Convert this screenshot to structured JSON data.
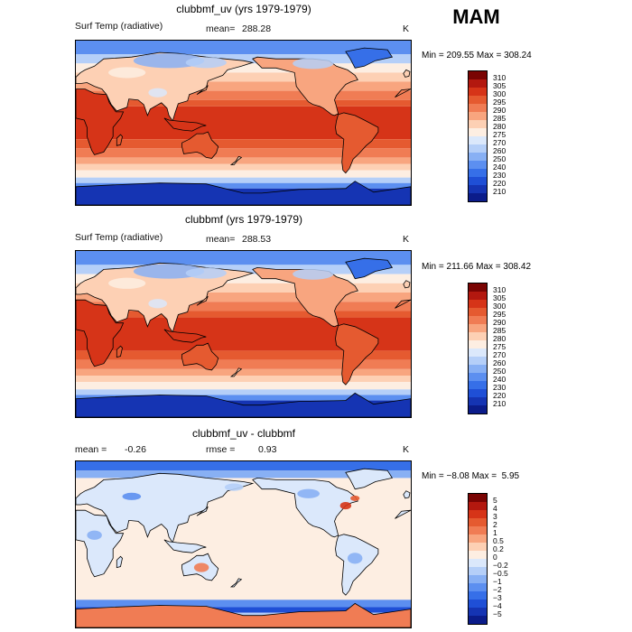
{
  "season": "MAM",
  "panels": [
    {
      "title": "clubbmf_uv (yrs 1979-1979)",
      "variable": "Surf Temp (radiative)",
      "stat_label": "mean=",
      "stat_value": "288.28",
      "units": "K",
      "minmax": "Min = 209.55 Max = 308.24",
      "colorbar": {
        "labels": [
          "310",
          "305",
          "300",
          "295",
          "290",
          "285",
          "280",
          "275",
          "270",
          "260",
          "250",
          "240",
          "230",
          "220",
          "210"
        ],
        "colors": [
          "#7a0403",
          "#b3180f",
          "#d63418",
          "#e55a30",
          "#f07c54",
          "#f8a57f",
          "#fdd0b4",
          "#fdeee2",
          "#dbe8fb",
          "#b5cff8",
          "#88b0f4",
          "#5c8ff0",
          "#366fe8",
          "#1f4fd6",
          "#1534b3",
          "#0b1c8a"
        ]
      },
      "colors": {
        "ocean_warm": "#d43b1d",
        "ocean_mid": "#ec7a50",
        "ocean_cool": "#f9c5a3",
        "polar": "#fdeee2",
        "cold": "#5c8ff0",
        "frozen": "#1f4fd6"
      }
    },
    {
      "title": "clubbmf (yrs 1979-1979)",
      "variable": "Surf Temp (radiative)",
      "stat_label": "mean=",
      "stat_value": "288.53",
      "units": "K",
      "minmax": "Min = 211.66 Max = 308.42",
      "colorbar": {
        "labels": [
          "310",
          "305",
          "300",
          "295",
          "290",
          "285",
          "280",
          "275",
          "270",
          "260",
          "250",
          "240",
          "230",
          "220",
          "210"
        ],
        "colors": [
          "#7a0403",
          "#b3180f",
          "#d63418",
          "#e55a30",
          "#f07c54",
          "#f8a57f",
          "#fdd0b4",
          "#fdeee2",
          "#dbe8fb",
          "#b5cff8",
          "#88b0f4",
          "#5c8ff0",
          "#366fe8",
          "#1f4fd6",
          "#1534b3",
          "#0b1c8a"
        ]
      }
    },
    {
      "title": "clubbmf_uv - clubbmf",
      "variable": "mean =",
      "stat_label": "",
      "stat_value": "-0.26",
      "rmse_label": "rmse =",
      "rmse_value": "0.93",
      "units": "K",
      "minmax": "Min = −8.08 Max =  5.95",
      "colorbar": {
        "labels": [
          "5",
          "4",
          "3",
          "2",
          "1",
          "0.5",
          "0.2",
          "0",
          "−0.2",
          "−0.5",
          "−1",
          "−2",
          "−3",
          "−4",
          "−5"
        ],
        "colors": [
          "#7a0403",
          "#b3180f",
          "#d63418",
          "#e55a30",
          "#f07c54",
          "#f8a57f",
          "#fdd0b4",
          "#fdeee2",
          "#dbe8fb",
          "#b5cff8",
          "#88b0f4",
          "#5c8ff0",
          "#366fe8",
          "#1f4fd6",
          "#1534b3",
          "#0b1c8a"
        ]
      }
    }
  ],
  "chart_data": [
    {
      "type": "heatmap",
      "title": "clubbmf_uv (yrs 1979-1979)",
      "field": "Surf Temp (radiative)",
      "units": "K",
      "mean": 288.28,
      "min": 209.55,
      "max": 308.24,
      "colorbar_levels": [
        210,
        220,
        230,
        240,
        250,
        260,
        270,
        275,
        280,
        285,
        290,
        295,
        300,
        305,
        310
      ]
    },
    {
      "type": "heatmap",
      "title": "clubbmf (yrs 1979-1979)",
      "field": "Surf Temp (radiative)",
      "units": "K",
      "mean": 288.53,
      "min": 211.66,
      "max": 308.42,
      "colorbar_levels": [
        210,
        220,
        230,
        240,
        250,
        260,
        270,
        275,
        280,
        285,
        290,
        295,
        300,
        305,
        310
      ]
    },
    {
      "type": "heatmap",
      "title": "clubbmf_uv - clubbmf",
      "units": "K",
      "mean": -0.26,
      "rmse": 0.93,
      "min": -8.08,
      "max": 5.95,
      "colorbar_levels": [
        -5,
        -4,
        -3,
        -2,
        -1,
        -0.5,
        -0.2,
        0,
        0.2,
        0.5,
        1,
        2,
        3,
        4,
        5
      ]
    }
  ]
}
